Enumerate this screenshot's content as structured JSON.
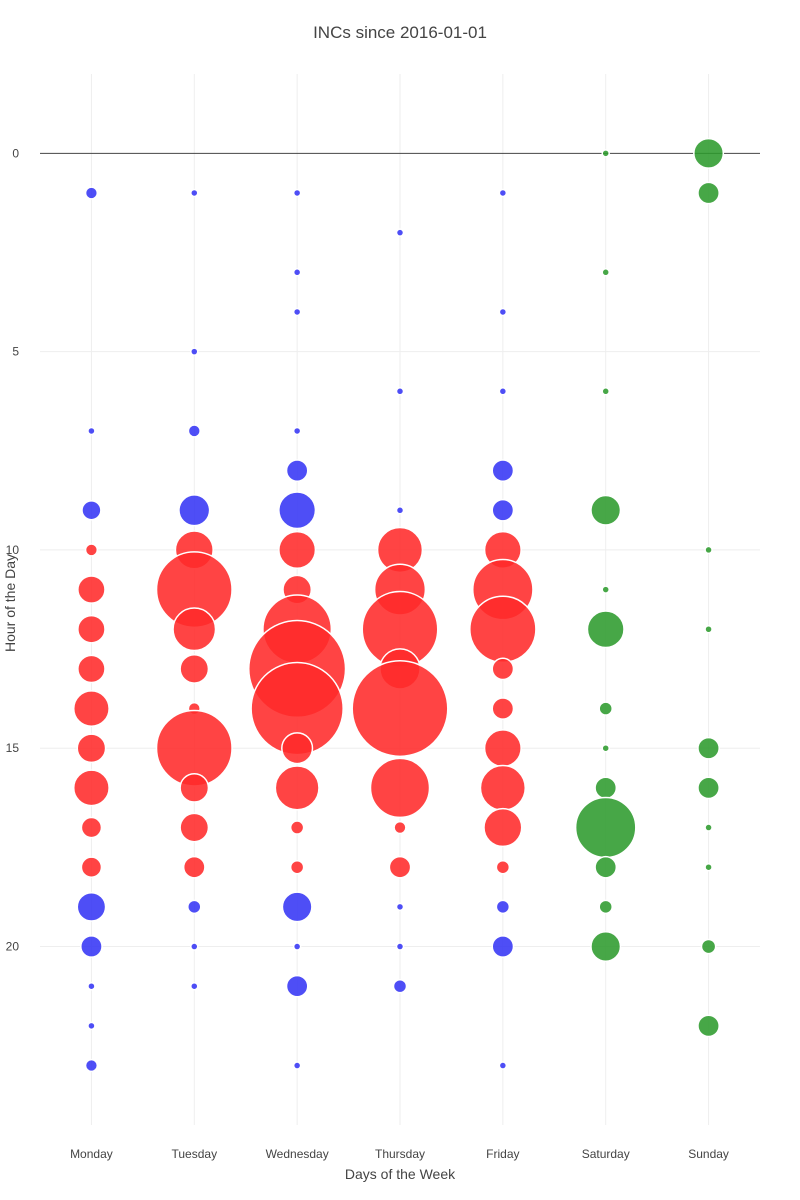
{
  "chart_data": {
    "type": "scatter",
    "title": "INCs since 2016-01-01",
    "xlabel": "Days of the Week",
    "ylabel": "Hour of the Day",
    "categories": [
      "Monday",
      "Tuesday",
      "Wednesday",
      "Thursday",
      "Friday",
      "Saturday",
      "Sunday"
    ],
    "yticks": [
      0,
      5,
      10,
      15,
      20
    ],
    "ylim": [
      -2,
      24.5
    ],
    "y_reversed": true,
    "grid": true,
    "legend": "none",
    "colors": {
      "blue": "#3535f5",
      "red": "#ff2a2a",
      "green": "#2e9b2e"
    },
    "points": [
      {
        "x": "Monday",
        "y": 1,
        "size": 1,
        "color": "blue"
      },
      {
        "x": "Monday",
        "y": 7,
        "size": 0.4,
        "color": "blue"
      },
      {
        "x": "Monday",
        "y": 9,
        "size": 1.6,
        "color": "blue"
      },
      {
        "x": "Monday",
        "y": 10,
        "size": 1,
        "color": "red"
      },
      {
        "x": "Monday",
        "y": 11,
        "size": 2.3,
        "color": "red"
      },
      {
        "x": "Monday",
        "y": 12,
        "size": 2.3,
        "color": "red"
      },
      {
        "x": "Monday",
        "y": 13,
        "size": 2.3,
        "color": "red"
      },
      {
        "x": "Monday",
        "y": 14,
        "size": 3.0,
        "color": "red"
      },
      {
        "x": "Monday",
        "y": 15,
        "size": 2.4,
        "color": "red"
      },
      {
        "x": "Monday",
        "y": 16,
        "size": 3.0,
        "color": "red"
      },
      {
        "x": "Monday",
        "y": 17,
        "size": 1.7,
        "color": "red"
      },
      {
        "x": "Monday",
        "y": 18,
        "size": 1.7,
        "color": "red"
      },
      {
        "x": "Monday",
        "y": 19,
        "size": 2.4,
        "color": "blue"
      },
      {
        "x": "Monday",
        "y": 20,
        "size": 1.8,
        "color": "blue"
      },
      {
        "x": "Monday",
        "y": 21,
        "size": 0.4,
        "color": "blue"
      },
      {
        "x": "Monday",
        "y": 22,
        "size": 0.4,
        "color": "blue"
      },
      {
        "x": "Monday",
        "y": 23,
        "size": 1,
        "color": "blue"
      },
      {
        "x": "Tuesday",
        "y": 1,
        "size": 0.4,
        "color": "blue"
      },
      {
        "x": "Tuesday",
        "y": 5,
        "size": 0.4,
        "color": "blue"
      },
      {
        "x": "Tuesday",
        "y": 7,
        "size": 1,
        "color": "blue"
      },
      {
        "x": "Tuesday",
        "y": 9,
        "size": 2.6,
        "color": "blue"
      },
      {
        "x": "Tuesday",
        "y": 10,
        "size": 3.2,
        "color": "red"
      },
      {
        "x": "Tuesday",
        "y": 11,
        "size": 6.4,
        "color": "red"
      },
      {
        "x": "Tuesday",
        "y": 12,
        "size": 3.6,
        "color": "red"
      },
      {
        "x": "Tuesday",
        "y": 13,
        "size": 2.4,
        "color": "red"
      },
      {
        "x": "Tuesday",
        "y": 14,
        "size": 1.0,
        "color": "red"
      },
      {
        "x": "Tuesday",
        "y": 15,
        "size": 6.4,
        "color": "red"
      },
      {
        "x": "Tuesday",
        "y": 16,
        "size": 2.4,
        "color": "red"
      },
      {
        "x": "Tuesday",
        "y": 17,
        "size": 2.4,
        "color": "red"
      },
      {
        "x": "Tuesday",
        "y": 18,
        "size": 1.8,
        "color": "red"
      },
      {
        "x": "Tuesday",
        "y": 19,
        "size": 1.1,
        "color": "blue"
      },
      {
        "x": "Tuesday",
        "y": 20,
        "size": 0.4,
        "color": "blue"
      },
      {
        "x": "Tuesday",
        "y": 21,
        "size": 0.4,
        "color": "blue"
      },
      {
        "x": "Wednesday",
        "y": 1,
        "size": 0.4,
        "color": "blue"
      },
      {
        "x": "Wednesday",
        "y": 3,
        "size": 0.4,
        "color": "blue"
      },
      {
        "x": "Wednesday",
        "y": 4,
        "size": 0.4,
        "color": "blue"
      },
      {
        "x": "Wednesday",
        "y": 7,
        "size": 0.4,
        "color": "blue"
      },
      {
        "x": "Wednesday",
        "y": 8,
        "size": 1.8,
        "color": "blue"
      },
      {
        "x": "Wednesday",
        "y": 9,
        "size": 3.1,
        "color": "blue"
      },
      {
        "x": "Wednesday",
        "y": 10,
        "size": 3.1,
        "color": "red"
      },
      {
        "x": "Wednesday",
        "y": 11,
        "size": 2.4,
        "color": "red"
      },
      {
        "x": "Wednesday",
        "y": 12,
        "size": 5.8,
        "color": "red"
      },
      {
        "x": "Wednesday",
        "y": 13,
        "size": 8.2,
        "color": "red"
      },
      {
        "x": "Wednesday",
        "y": 14,
        "size": 7.8,
        "color": "red"
      },
      {
        "x": "Wednesday",
        "y": 15,
        "size": 2.6,
        "color": "red"
      },
      {
        "x": "Wednesday",
        "y": 16,
        "size": 3.7,
        "color": "red"
      },
      {
        "x": "Wednesday",
        "y": 17,
        "size": 1.1,
        "color": "red"
      },
      {
        "x": "Wednesday",
        "y": 18,
        "size": 1.1,
        "color": "red"
      },
      {
        "x": "Wednesday",
        "y": 19,
        "size": 2.5,
        "color": "blue"
      },
      {
        "x": "Wednesday",
        "y": 20,
        "size": 0.4,
        "color": "blue"
      },
      {
        "x": "Wednesday",
        "y": 21,
        "size": 1.8,
        "color": "blue"
      },
      {
        "x": "Wednesday",
        "y": 23,
        "size": 0.4,
        "color": "blue"
      },
      {
        "x": "Thursday",
        "y": 2,
        "size": 0.4,
        "color": "blue"
      },
      {
        "x": "Thursday",
        "y": 6,
        "size": 0.4,
        "color": "blue"
      },
      {
        "x": "Thursday",
        "y": 9,
        "size": 0.4,
        "color": "blue"
      },
      {
        "x": "Thursday",
        "y": 10,
        "size": 3.8,
        "color": "red"
      },
      {
        "x": "Thursday",
        "y": 11,
        "size": 4.3,
        "color": "red"
      },
      {
        "x": "Thursday",
        "y": 12,
        "size": 6.4,
        "color": "red"
      },
      {
        "x": "Thursday",
        "y": 13,
        "size": 3.4,
        "color": "red"
      },
      {
        "x": "Thursday",
        "y": 14,
        "size": 8.1,
        "color": "red"
      },
      {
        "x": "Thursday",
        "y": 16,
        "size": 5.0,
        "color": "red"
      },
      {
        "x": "Thursday",
        "y": 17,
        "size": 1.0,
        "color": "red"
      },
      {
        "x": "Thursday",
        "y": 18,
        "size": 1.8,
        "color": "red"
      },
      {
        "x": "Thursday",
        "y": 19,
        "size": 0.4,
        "color": "blue"
      },
      {
        "x": "Thursday",
        "y": 20,
        "size": 0.4,
        "color": "blue"
      },
      {
        "x": "Thursday",
        "y": 21,
        "size": 1.1,
        "color": "blue"
      },
      {
        "x": "Friday",
        "y": 1,
        "size": 0.4,
        "color": "blue"
      },
      {
        "x": "Friday",
        "y": 4,
        "size": 0.4,
        "color": "blue"
      },
      {
        "x": "Friday",
        "y": 6,
        "size": 0.4,
        "color": "blue"
      },
      {
        "x": "Friday",
        "y": 8,
        "size": 1.8,
        "color": "blue"
      },
      {
        "x": "Friday",
        "y": 9,
        "size": 1.8,
        "color": "blue"
      },
      {
        "x": "Friday",
        "y": 10,
        "size": 3.1,
        "color": "red"
      },
      {
        "x": "Friday",
        "y": 11,
        "size": 5.1,
        "color": "red"
      },
      {
        "x": "Friday",
        "y": 12,
        "size": 5.6,
        "color": "red"
      },
      {
        "x": "Friday",
        "y": 13,
        "size": 1.8,
        "color": "red"
      },
      {
        "x": "Friday",
        "y": 14,
        "size": 1.8,
        "color": "red"
      },
      {
        "x": "Friday",
        "y": 15,
        "size": 3.1,
        "color": "red"
      },
      {
        "x": "Friday",
        "y": 16,
        "size": 3.8,
        "color": "red"
      },
      {
        "x": "Friday",
        "y": 17,
        "size": 3.2,
        "color": "red"
      },
      {
        "x": "Friday",
        "y": 18,
        "size": 1.1,
        "color": "red"
      },
      {
        "x": "Friday",
        "y": 19,
        "size": 1.1,
        "color": "blue"
      },
      {
        "x": "Friday",
        "y": 20,
        "size": 1.8,
        "color": "blue"
      },
      {
        "x": "Friday",
        "y": 23,
        "size": 0.4,
        "color": "blue"
      },
      {
        "x": "Saturday",
        "y": 0,
        "size": 0.4,
        "color": "green"
      },
      {
        "x": "Saturday",
        "y": 3,
        "size": 0.4,
        "color": "green"
      },
      {
        "x": "Saturday",
        "y": 6,
        "size": 0.4,
        "color": "green"
      },
      {
        "x": "Saturday",
        "y": 9,
        "size": 2.5,
        "color": "green"
      },
      {
        "x": "Saturday",
        "y": 11,
        "size": 0.4,
        "color": "green"
      },
      {
        "x": "Saturday",
        "y": 12,
        "size": 3.1,
        "color": "green"
      },
      {
        "x": "Saturday",
        "y": 14,
        "size": 1.1,
        "color": "green"
      },
      {
        "x": "Saturday",
        "y": 15,
        "size": 0.4,
        "color": "green"
      },
      {
        "x": "Saturday",
        "y": 16,
        "size": 1.8,
        "color": "green"
      },
      {
        "x": "Saturday",
        "y": 17,
        "size": 5.1,
        "color": "green"
      },
      {
        "x": "Saturday",
        "y": 18,
        "size": 1.8,
        "color": "green"
      },
      {
        "x": "Saturday",
        "y": 19,
        "size": 1.1,
        "color": "green"
      },
      {
        "x": "Saturday",
        "y": 20,
        "size": 2.5,
        "color": "green"
      },
      {
        "x": "Sunday",
        "y": 0,
        "size": 2.5,
        "color": "green"
      },
      {
        "x": "Sunday",
        "y": 1,
        "size": 1.8,
        "color": "green"
      },
      {
        "x": "Sunday",
        "y": 10,
        "size": 0.4,
        "color": "green"
      },
      {
        "x": "Sunday",
        "y": 12,
        "size": 0.4,
        "color": "green"
      },
      {
        "x": "Sunday",
        "y": 15,
        "size": 1.8,
        "color": "green"
      },
      {
        "x": "Sunday",
        "y": 16,
        "size": 1.8,
        "color": "green"
      },
      {
        "x": "Sunday",
        "y": 17,
        "size": 0.4,
        "color": "green"
      },
      {
        "x": "Sunday",
        "y": 18,
        "size": 0.4,
        "color": "green"
      },
      {
        "x": "Sunday",
        "y": 20,
        "size": 1.2,
        "color": "green"
      },
      {
        "x": "Sunday",
        "y": 22,
        "size": 1.8,
        "color": "green"
      }
    ]
  }
}
